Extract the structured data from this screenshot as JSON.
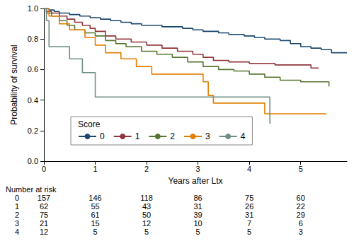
{
  "chart_data": {
    "type": "line",
    "line_style": "step",
    "x_label": "Years after Ltx",
    "y_label": "Probability of survival",
    "xlim": [
      0,
      5.9
    ],
    "xticks": [
      0,
      1,
      2,
      3,
      4,
      5
    ],
    "ylim": [
      0,
      1
    ],
    "yticks": [
      {
        "value": 0,
        "label": "0.0"
      },
      0.2,
      0.4,
      0.6,
      0.8,
      {
        "value": 1,
        "label": "1.0"
      }
    ],
    "grid": false,
    "legend": "lower left",
    "legend_title": "Score",
    "series": [
      {
        "name": "0",
        "color": "#1a476f",
        "x": [
          0,
          0.1,
          0.2,
          0.3,
          0.5,
          0.7,
          0.9,
          1.1,
          1.3,
          1.5,
          1.7,
          1.9,
          2.3,
          2.7,
          2.9,
          3.1,
          3.4,
          3.6,
          3.9,
          4.1,
          4.3,
          4.6,
          4.8,
          5.0,
          5.2,
          5.4,
          5.6,
          5.9
        ],
        "values": [
          1,
          0.99,
          0.98,
          0.97,
          0.96,
          0.95,
          0.94,
          0.93,
          0.92,
          0.91,
          0.9,
          0.89,
          0.88,
          0.87,
          0.86,
          0.85,
          0.84,
          0.83,
          0.82,
          0.81,
          0.8,
          0.79,
          0.77,
          0.75,
          0.74,
          0.73,
          0.71,
          0.71
        ]
      },
      {
        "name": "1",
        "color": "#90353b",
        "x": [
          0,
          0.05,
          0.15,
          0.3,
          0.45,
          0.6,
          0.75,
          0.9,
          1.0,
          1.2,
          1.4,
          1.7,
          2.0,
          2.3,
          2.6,
          2.9,
          3.1,
          3.3,
          3.6,
          4.0,
          4.5,
          5.2,
          5.35
        ],
        "values": [
          1,
          0.98,
          0.97,
          0.95,
          0.93,
          0.91,
          0.89,
          0.87,
          0.85,
          0.82,
          0.8,
          0.78,
          0.76,
          0.74,
          0.72,
          0.7,
          0.68,
          0.66,
          0.65,
          0.64,
          0.63,
          0.61,
          0.61
        ]
      },
      {
        "name": "2",
        "color": "#55752f",
        "x": [
          0,
          0.05,
          0.15,
          0.3,
          0.45,
          0.6,
          0.8,
          1.0,
          1.2,
          1.4,
          1.6,
          1.9,
          2.2,
          2.5,
          2.8,
          3.1,
          3.4,
          3.7,
          4.0,
          4.3,
          4.6,
          5.0,
          5.55
        ],
        "values": [
          1,
          0.97,
          0.95,
          0.92,
          0.89,
          0.86,
          0.84,
          0.82,
          0.79,
          0.77,
          0.75,
          0.72,
          0.7,
          0.68,
          0.65,
          0.62,
          0.6,
          0.59,
          0.57,
          0.55,
          0.53,
          0.52,
          0.49
        ]
      },
      {
        "name": "3",
        "color": "#e37e00",
        "x": [
          0,
          0.1,
          0.3,
          0.5,
          0.8,
          1.0,
          1.2,
          1.5,
          1.8,
          2.1,
          3.1,
          3.2,
          3.3,
          4.3,
          5.5
        ],
        "values": [
          1,
          0.95,
          0.9,
          0.86,
          0.81,
          0.76,
          0.71,
          0.67,
          0.62,
          0.57,
          0.52,
          0.43,
          0.38,
          0.31,
          0.31
        ]
      },
      {
        "name": "4",
        "color": "#6e8e84",
        "x": [
          0,
          0.05,
          0.1,
          0.5,
          0.75,
          1.0,
          4.4,
          4.42
        ],
        "values": [
          1,
          0.92,
          0.75,
          0.67,
          0.58,
          0.42,
          0.25,
          0.25
        ]
      }
    ],
    "risk_table": {
      "title": "Number at risk",
      "x": [
        0,
        1,
        2,
        3,
        4,
        5
      ],
      "rows": [
        {
          "name": "0",
          "values": [
            157,
            146,
            118,
            86,
            75,
            60
          ]
        },
        {
          "name": "1",
          "values": [
            62,
            55,
            43,
            31,
            26,
            22
          ]
        },
        {
          "name": "2",
          "values": [
            75,
            61,
            50,
            39,
            31,
            29
          ]
        },
        {
          "name": "3",
          "values": [
            21,
            15,
            12,
            10,
            7,
            6
          ]
        },
        {
          "name": "4",
          "values": [
            12,
            5,
            5,
            5,
            5,
            3
          ]
        }
      ]
    }
  }
}
